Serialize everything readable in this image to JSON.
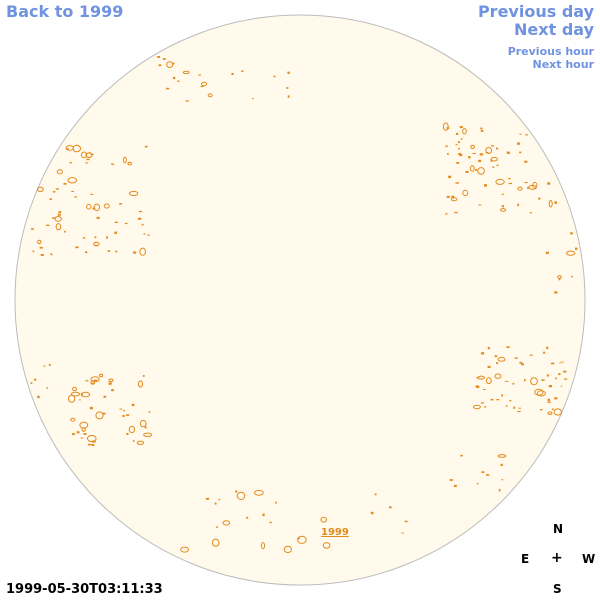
{
  "nav": {
    "back_label": "Back to 1999",
    "prev_day_label": "Previous day",
    "next_day_label": "Next day",
    "prev_hour_label": "Previous hour",
    "next_hour_label": "Next hour"
  },
  "disk": {
    "year_link": "1999",
    "fill_color": "#fffaeb",
    "border_color": "#bcbcbc",
    "marker_color": "#e38a1e"
  },
  "compass": {
    "north": "N",
    "east": "E",
    "center": "+",
    "west": "W",
    "south": "S"
  },
  "timestamp": "1999-05-30T03:11:33"
}
